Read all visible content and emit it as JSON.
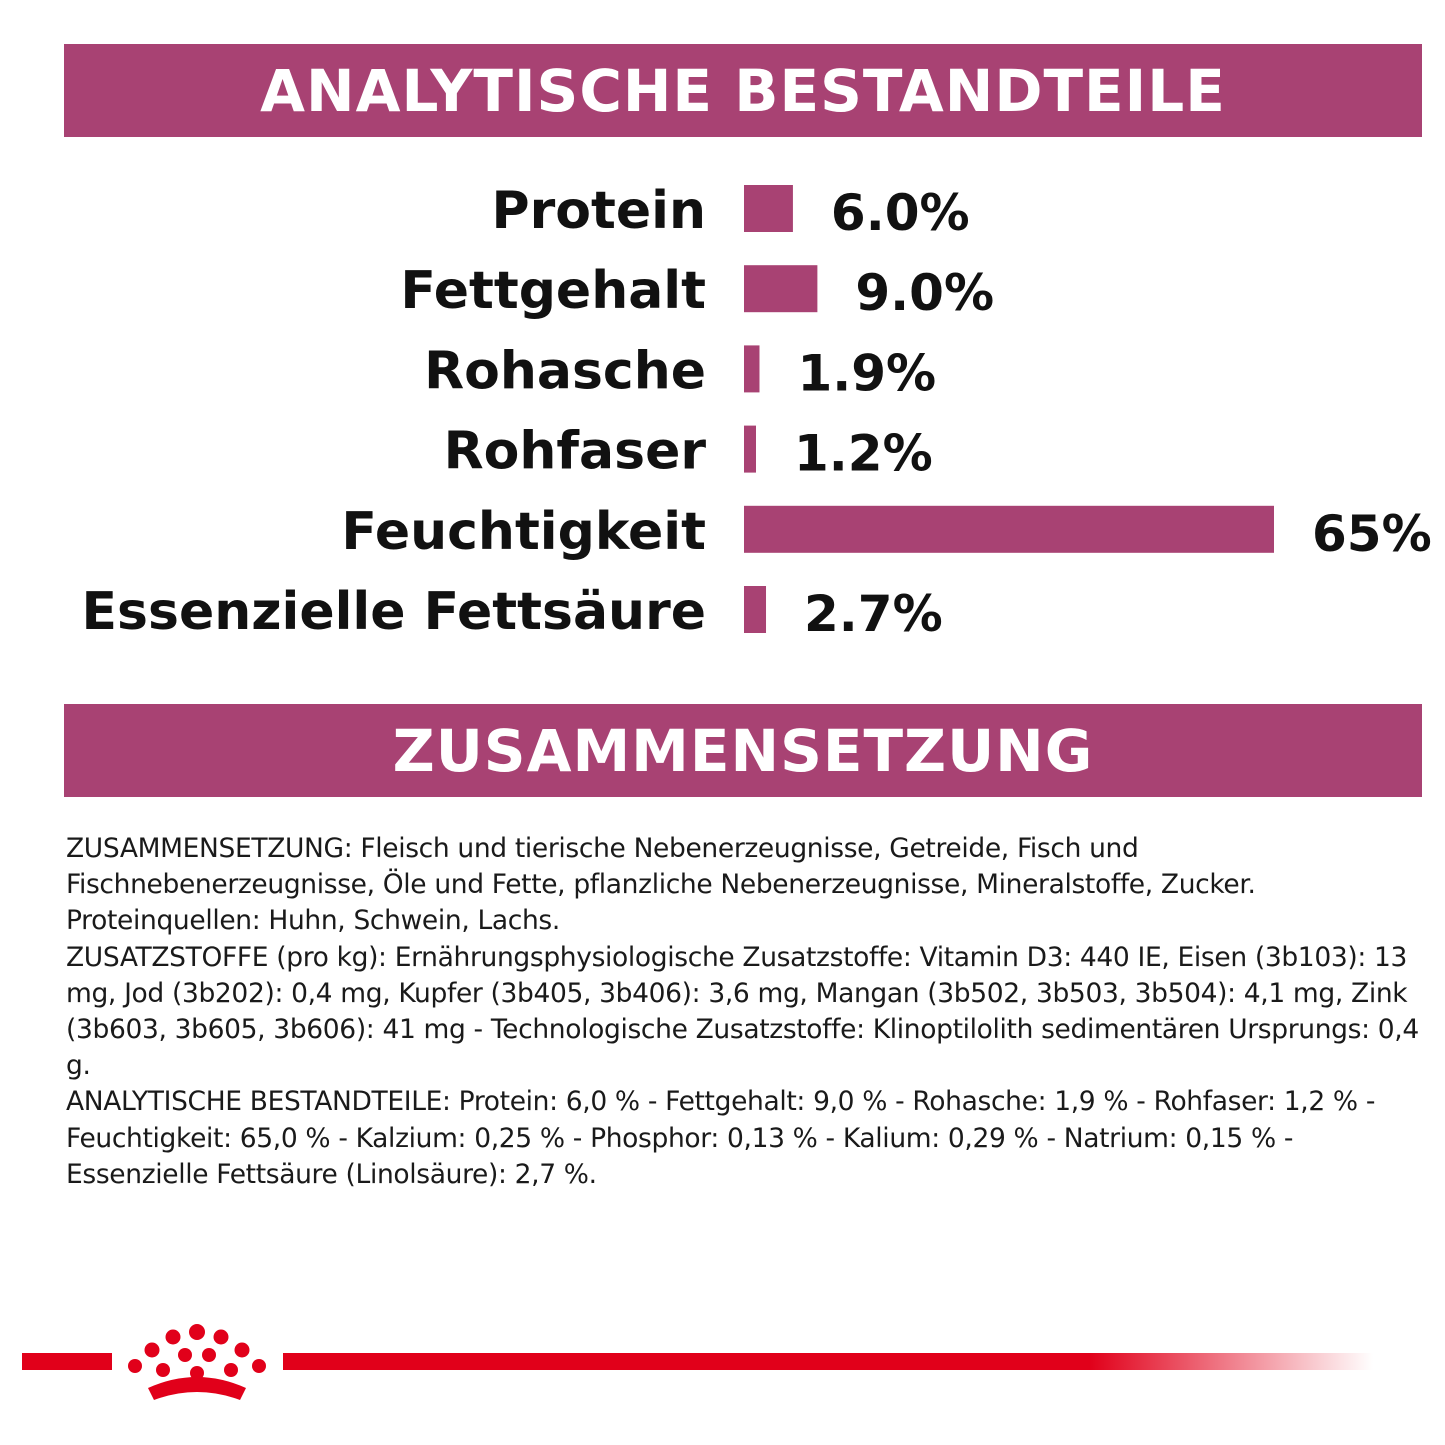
{
  "sections": {
    "analytics_title": "ANALYTISCHE BESTANDTEILE",
    "composition_title": "ZUSAMMENSETZUNG"
  },
  "chart_data": {
    "type": "bar",
    "orientation": "horizontal",
    "title": "ANALYTISCHE BESTANDTEILE",
    "categories": [
      "Protein",
      "Fettgehalt",
      "Rohasche",
      "Rohfaser",
      "Feuchtigkeit",
      "Essenzielle Fettsäure"
    ],
    "values": [
      6.0,
      9.0,
      1.9,
      1.2,
      65,
      2.7
    ],
    "value_labels": [
      "6.0%",
      "9.0%",
      "1.9%",
      "1.2%",
      "65%",
      "2.7%"
    ],
    "unit": "%",
    "xlim": [
      0,
      65
    ],
    "grid": false,
    "legend": "none",
    "bar_color": "#a84273"
  },
  "composition_paragraphs": [
    "ZUSAMMENSETZUNG: Fleisch und tierische Nebenerzeugnisse, Getreide, Fisch und Fischnebenerzeugnisse, Öle und Fette, pflanzliche Nebenerzeugnisse, Mineralstoffe, Zucker. Proteinquellen: Huhn, Schwein, Lachs.",
    "ZUSATZSTOFFE (pro kg): Ernährungsphysiologische Zusatzstoffe: Vitamin D3: 440 IE, Eisen (3b103): 13 mg, Jod (3b202): 0,4 mg, Kupfer (3b405, 3b406): 3,6 mg, Mangan (3b502, 3b503, 3b504): 4,1 mg, Zink (3b603, 3b605, 3b606): 41 mg - Technologische Zusatzstoffe: Klinoptilolith sedimentären Ursprungs: 0,4 g.",
    "ANALYTISCHE BESTANDTEILE: Protein: 6,0 % - Fettgehalt: 9,0 % - Rohasche: 1,9 % - Rohfaser: 1,2 % - Feuchtigkeit: 65,0 % - Kalzium: 0,25 % - Phosphor: 0,13 % - Kalium: 0,29 % - Natrium: 0,15 % - Essenzielle Fettsäure (Linolsäure): 2,7 %."
  ],
  "footer": {
    "logo_icon": "crown-icon",
    "accent_color": "#e1001a"
  }
}
